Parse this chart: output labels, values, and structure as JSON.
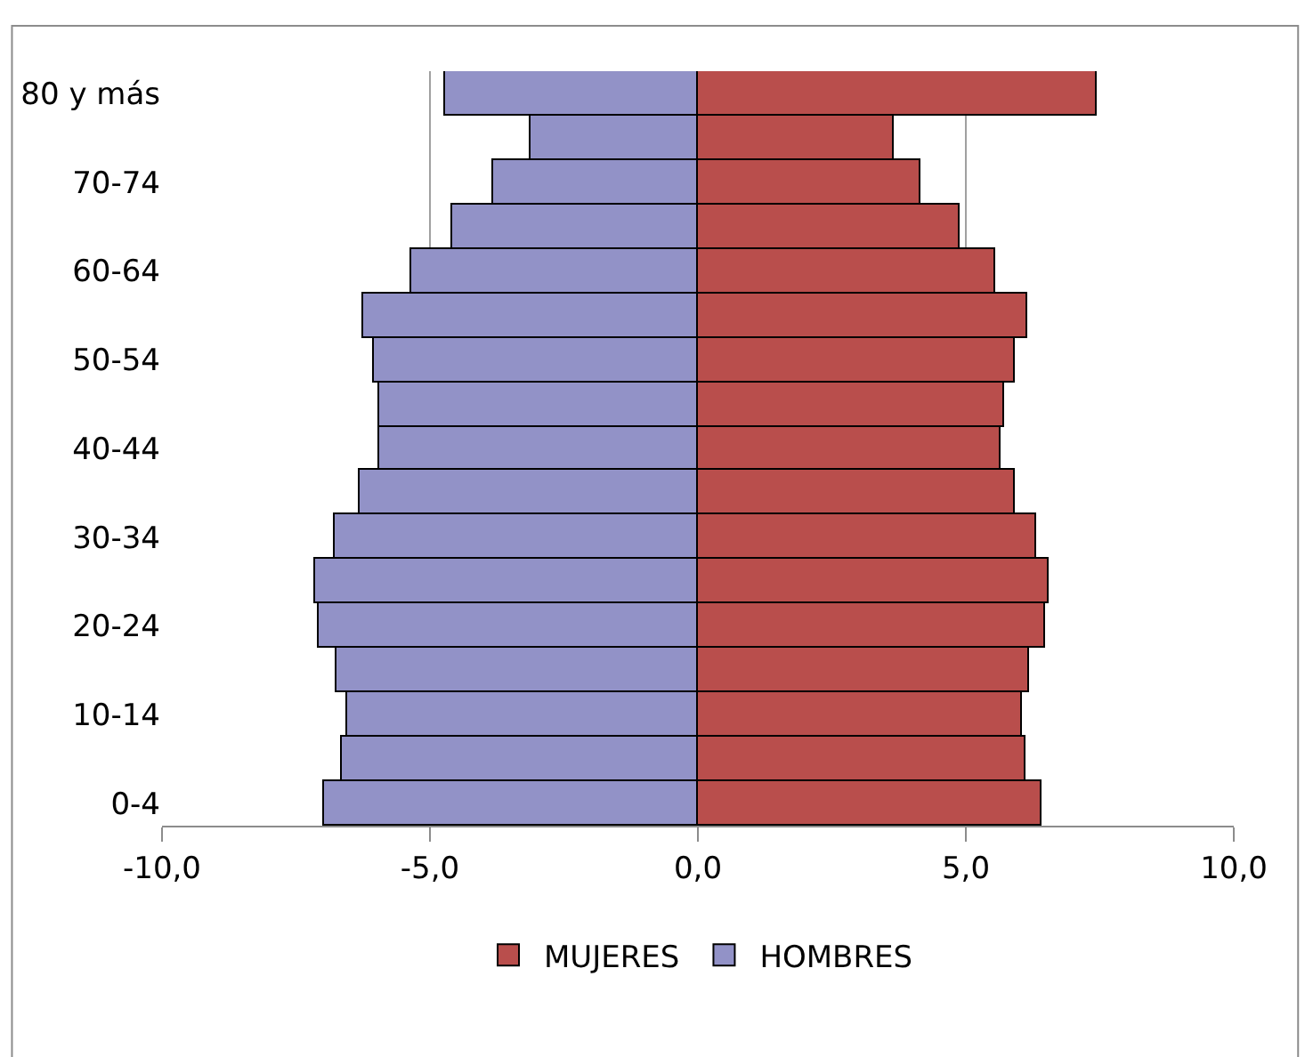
{
  "chart_data": {
    "type": "bar",
    "orientation": "horizontal",
    "categories": [
      "80 y más",
      null,
      "70-74",
      null,
      "60-64",
      null,
      "50-54",
      null,
      "40-44",
      null,
      "30-34",
      null,
      "20-24",
      null,
      "10-14",
      null,
      "0-4"
    ],
    "series": [
      {
        "name": "MUJERES",
        "color": "#b94e4c",
        "values": [
          7.43,
          3.64,
          4.16,
          4.88,
          5.55,
          6.14,
          5.9,
          5.7,
          5.66,
          5.9,
          6.32,
          6.56,
          6.47,
          6.19,
          6.03,
          6.12,
          6.42
        ]
      },
      {
        "name": "HOMBRES",
        "color": "#9292c7",
        "values": [
          -4.72,
          -3.13,
          -3.81,
          -4.57,
          -5.35,
          -6.26,
          -6.06,
          -5.96,
          -5.96,
          -6.3,
          -6.79,
          -7.13,
          -7.09,
          -6.74,
          -6.54,
          -6.63,
          -6.98
        ]
      }
    ],
    "xlim": [
      -10,
      10
    ],
    "xticks": [
      {
        "value": -10,
        "label": "-10,0"
      },
      {
        "value": -5,
        "label": "-5,0"
      },
      {
        "value": 0,
        "label": "0,0"
      },
      {
        "value": 5,
        "label": "5,0"
      },
      {
        "value": 10,
        "label": "10,0"
      }
    ],
    "grid": "x",
    "legend": "bottom",
    "stacked": true
  }
}
